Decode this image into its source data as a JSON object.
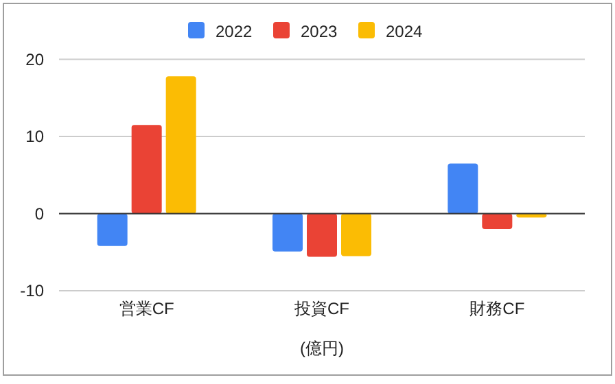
{
  "chart_data": {
    "type": "bar",
    "categories": [
      "営業CF",
      "投資CF",
      "財務CF"
    ],
    "xlabel": "(億円)",
    "series": [
      {
        "name": "2022",
        "color": "#4285f4",
        "values": [
          -4.2,
          -4.9,
          6.5
        ]
      },
      {
        "name": "2023",
        "color": "#ea4335",
        "values": [
          11.5,
          -5.6,
          -2.0
        ]
      },
      {
        "name": "2024",
        "color": "#fbbc04",
        "values": [
          17.8,
          -5.5,
          -0.5
        ]
      }
    ],
    "ylim": [
      -10,
      20
    ],
    "yticks": [
      -10,
      0,
      10,
      20
    ],
    "grid": "y",
    "legend": "top"
  }
}
